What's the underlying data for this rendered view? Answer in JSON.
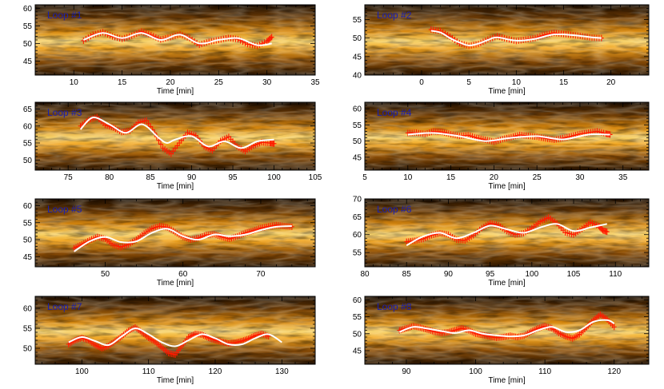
{
  "chart_data": [
    {
      "type": "line",
      "title": "Loop #1",
      "xlabel": "Time [min]",
      "xlim": [
        6,
        35
      ],
      "ylim": [
        41,
        61
      ],
      "xticks": [
        10,
        15,
        20,
        25,
        30,
        35
      ],
      "yticks": [
        45,
        50,
        55,
        60
      ],
      "series": [
        {
          "name": "fit",
          "x": [
            11,
            13,
            15,
            17,
            19,
            21,
            23,
            25,
            27,
            29,
            30.5
          ],
          "y": [
            51.0,
            53.0,
            51.5,
            53.0,
            51.0,
            52.5,
            50.0,
            51.0,
            51.5,
            49.5,
            50.0
          ]
        },
        {
          "name": "measured",
          "x": [
            11,
            12,
            13,
            14,
            15,
            16,
            17,
            18,
            19,
            20,
            21,
            22,
            23,
            24,
            25,
            26,
            27,
            28,
            29,
            30,
            30.5
          ],
          "y": [
            50.8,
            52.5,
            53.2,
            52.0,
            51.3,
            52.2,
            53.4,
            52.4,
            51.1,
            51.8,
            52.6,
            51.5,
            49.6,
            50.5,
            51.0,
            51.6,
            51.2,
            49.8,
            49.3,
            50.6,
            51.8
          ]
        }
      ]
    },
    {
      "type": "line",
      "title": "Loop #2",
      "xlabel": "Time [min]",
      "xlim": [
        -6,
        24
      ],
      "ylim": [
        40,
        59
      ],
      "xticks": [
        0,
        5,
        10,
        15,
        20
      ],
      "yticks": [
        40,
        45,
        50,
        55
      ],
      "series": [
        {
          "name": "fit",
          "x": [
            1,
            2,
            3,
            4,
            5,
            6,
            7,
            8,
            10,
            12,
            14,
            16,
            18,
            19
          ],
          "y": [
            52.0,
            51.5,
            50.0,
            48.8,
            48.0,
            48.5,
            49.5,
            50.2,
            49.3,
            49.8,
            51.0,
            50.8,
            50.2,
            50.0
          ]
        },
        {
          "name": "measured",
          "x": [
            1,
            2,
            3,
            4,
            5,
            6,
            7,
            8,
            9,
            10,
            11,
            12,
            13,
            14,
            15,
            16,
            17,
            18,
            19
          ],
          "y": [
            52.3,
            51.9,
            50.4,
            48.6,
            47.9,
            48.4,
            49.6,
            50.5,
            49.8,
            49.2,
            49.6,
            50.0,
            50.9,
            51.4,
            51.1,
            50.8,
            50.5,
            50.1,
            50.0
          ]
        }
      ]
    },
    {
      "type": "line",
      "title": "Loop #3",
      "xlabel": "Time [min]",
      "xlim": [
        71,
        105
      ],
      "ylim": [
        47,
        67
      ],
      "xticks": [
        75,
        80,
        85,
        90,
        95,
        100,
        105
      ],
      "yticks": [
        50,
        55,
        60,
        65
      ],
      "series": [
        {
          "name": "fit",
          "x": [
            76.5,
            78,
            80,
            82,
            84,
            86,
            87,
            88,
            90,
            92,
            94,
            96,
            98,
            100
          ],
          "y": [
            59.0,
            62.5,
            60.5,
            58.0,
            60.5,
            56.5,
            55.0,
            56.0,
            57.0,
            54.0,
            55.5,
            53.5,
            55.5,
            56.0
          ]
        },
        {
          "name": "measured",
          "x": [
            76.5,
            77.5,
            78.5,
            79.5,
            80.5,
            81.5,
            82.5,
            83.5,
            84.5,
            85.5,
            86.5,
            87.5,
            88.5,
            89.5,
            90.5,
            91.5,
            92.5,
            93.5,
            94.5,
            95.5,
            96.5,
            97.5,
            98.5,
            99.5,
            100
          ],
          "y": [
            60.0,
            61.8,
            62.6,
            60.3,
            59.5,
            58.2,
            58.6,
            61.0,
            61.6,
            58.0,
            53.5,
            51.8,
            55.0,
            58.0,
            57.2,
            54.0,
            52.8,
            55.6,
            56.8,
            54.0,
            52.6,
            54.2,
            55.2,
            55.0,
            54.8
          ]
        }
      ]
    },
    {
      "type": "line",
      "title": "Loop #4",
      "xlabel": "Time [min]",
      "xlim": [
        5,
        38
      ],
      "ylim": [
        41,
        62
      ],
      "xticks": [
        5,
        10,
        15,
        20,
        25,
        30,
        35
      ],
      "yticks": [
        45,
        50,
        55,
        60
      ],
      "series": [
        {
          "name": "fit",
          "x": [
            10,
            13,
            16,
            19,
            22,
            25,
            28,
            31,
            33.5
          ],
          "y": [
            52.0,
            52.5,
            51.5,
            50.0,
            51.0,
            51.5,
            50.5,
            52.0,
            52.0
          ]
        },
        {
          "name": "measured",
          "x": [
            10,
            11,
            12,
            13,
            14,
            15,
            16,
            17,
            18,
            19,
            20,
            21,
            22,
            23,
            24,
            25,
            26,
            27,
            28,
            29,
            30,
            31,
            32,
            33,
            33.5
          ],
          "y": [
            52.5,
            52.6,
            52.2,
            53.0,
            52.8,
            52.1,
            51.6,
            51.8,
            51.0,
            50.4,
            49.8,
            50.6,
            51.2,
            51.9,
            51.6,
            51.3,
            50.8,
            50.4,
            50.9,
            51.5,
            52.2,
            52.6,
            53.0,
            52.3,
            52.0
          ]
        }
      ]
    },
    {
      "type": "line",
      "title": "Loop #5",
      "xlabel": "Time [min]",
      "xlim": [
        41,
        77
      ],
      "ylim": [
        42,
        62
      ],
      "xticks": [
        50,
        60,
        70
      ],
      "yticks": [
        45,
        50,
        55,
        60
      ],
      "series": [
        {
          "name": "fit",
          "x": [
            46,
            48,
            50,
            52,
            54,
            56,
            58,
            60,
            62,
            64,
            66,
            68,
            70,
            72,
            74
          ],
          "y": [
            46.5,
            49.5,
            50.8,
            49.3,
            49.5,
            52.0,
            53.2,
            51.0,
            50.0,
            51.5,
            51.0,
            51.5,
            52.8,
            53.8,
            54.0
          ]
        },
        {
          "name": "measured",
          "x": [
            46,
            47,
            48,
            49,
            50,
            51,
            52,
            53,
            54,
            55,
            56,
            57,
            58,
            59,
            60,
            61,
            62,
            63,
            64,
            65,
            66,
            67,
            68,
            69,
            70,
            71,
            72,
            73,
            74
          ],
          "y": [
            47.5,
            48.6,
            49.8,
            50.8,
            50.2,
            48.5,
            47.8,
            48.6,
            50.0,
            51.8,
            53.2,
            54.0,
            53.6,
            52.2,
            50.8,
            50.0,
            50.5,
            51.4,
            51.6,
            50.8,
            50.2,
            51.0,
            52.0,
            52.6,
            53.4,
            53.9,
            54.3,
            54.0,
            53.8
          ]
        }
      ]
    },
    {
      "type": "line",
      "title": "Loop #6",
      "xlabel": "Time [min]",
      "xlim": [
        80,
        114
      ],
      "ylim": [
        51,
        70
      ],
      "xticks": [
        80,
        85,
        90,
        95,
        100,
        105,
        110
      ],
      "yticks": [
        55,
        60,
        65,
        70
      ],
      "series": [
        {
          "name": "fit",
          "x": [
            85,
            87,
            89,
            91,
            93,
            95,
            97,
            99,
            101,
            103,
            105,
            107,
            109
          ],
          "y": [
            57.0,
            59.5,
            60.5,
            59.0,
            60.5,
            62.5,
            61.5,
            60.5,
            62.0,
            63.0,
            61.0,
            62.0,
            63.0
          ]
        },
        {
          "name": "measured",
          "x": [
            85,
            86,
            87,
            88,
            89,
            90,
            91,
            92,
            93,
            94,
            95,
            96,
            97,
            98,
            99,
            100,
            101,
            102,
            103,
            104,
            105,
            106,
            107,
            108,
            108.5,
            109
          ],
          "y": [
            58.0,
            58.3,
            58.8,
            59.8,
            60.4,
            60.0,
            58.6,
            58.4,
            59.8,
            61.8,
            63.2,
            62.6,
            61.0,
            60.0,
            60.4,
            61.8,
            63.6,
            64.8,
            63.2,
            60.6,
            60.0,
            61.6,
            63.4,
            62.4,
            61.2,
            60.8
          ]
        }
      ]
    },
    {
      "type": "line",
      "title": "Loop #7",
      "xlabel": "Time [min]",
      "xlim": [
        93,
        135
      ],
      "ylim": [
        46,
        63
      ],
      "xticks": [
        100,
        110,
        120,
        130
      ],
      "yticks": [
        50,
        55,
        60
      ],
      "series": [
        {
          "name": "fit",
          "x": [
            98,
            100,
            102,
            104,
            106,
            108,
            110,
            112,
            114,
            116,
            118,
            120,
            122,
            124,
            126,
            128,
            130
          ],
          "y": [
            51.5,
            52.8,
            51.8,
            50.8,
            53.0,
            55.0,
            53.5,
            51.5,
            50.5,
            52.0,
            53.5,
            52.5,
            51.0,
            51.0,
            52.5,
            53.5,
            51.5
          ]
        },
        {
          "name": "measured",
          "x": [
            98,
            99,
            100,
            101,
            102,
            103,
            104,
            105,
            106,
            107,
            108,
            109,
            110,
            111,
            112,
            113,
            114,
            115,
            116,
            117,
            118,
            119,
            120,
            121,
            122,
            123,
            124,
            125,
            126,
            127,
            128
          ],
          "y": [
            51.0,
            52.0,
            52.6,
            52.0,
            50.8,
            50.0,
            50.6,
            51.8,
            53.0,
            54.4,
            55.2,
            54.0,
            52.6,
            51.6,
            50.2,
            48.8,
            48.4,
            50.6,
            52.8,
            53.6,
            53.4,
            52.6,
            52.0,
            51.6,
            51.2,
            51.4,
            51.8,
            52.4,
            53.2,
            53.6,
            53.0
          ]
        }
      ]
    },
    {
      "type": "line",
      "title": "Loop #8",
      "xlabel": "Time [min]",
      "xlim": [
        84,
        125
      ],
      "ylim": [
        41,
        61
      ],
      "xticks": [
        90,
        100,
        110,
        120
      ],
      "yticks": [
        45,
        50,
        55,
        60
      ],
      "series": [
        {
          "name": "fit",
          "x": [
            89,
            91,
            93,
            95,
            97,
            99,
            101,
            103,
            105,
            107,
            109,
            111,
            113,
            115,
            117,
            119,
            120
          ],
          "y": [
            50.5,
            52.0,
            51.5,
            50.8,
            50.2,
            51.0,
            50.0,
            49.5,
            49.2,
            49.5,
            51.0,
            52.0,
            50.5,
            51.0,
            53.5,
            54.0,
            53.0
          ]
        },
        {
          "name": "measured",
          "x": [
            89,
            90,
            91,
            92,
            93,
            94,
            95,
            96,
            97,
            98,
            99,
            100,
            101,
            102,
            103,
            104,
            105,
            106,
            107,
            108,
            109,
            110,
            111,
            112,
            113,
            114,
            115,
            116,
            117,
            118,
            119,
            120
          ],
          "y": [
            51.0,
            51.6,
            52.2,
            51.8,
            51.2,
            50.6,
            50.2,
            50.4,
            51.0,
            51.6,
            51.0,
            50.0,
            49.6,
            49.2,
            48.8,
            49.0,
            49.4,
            49.0,
            49.4,
            50.6,
            51.6,
            52.2,
            51.6,
            50.2,
            49.2,
            48.6,
            49.8,
            51.8,
            54.0,
            55.6,
            54.2,
            52.0
          ]
        }
      ]
    }
  ]
}
